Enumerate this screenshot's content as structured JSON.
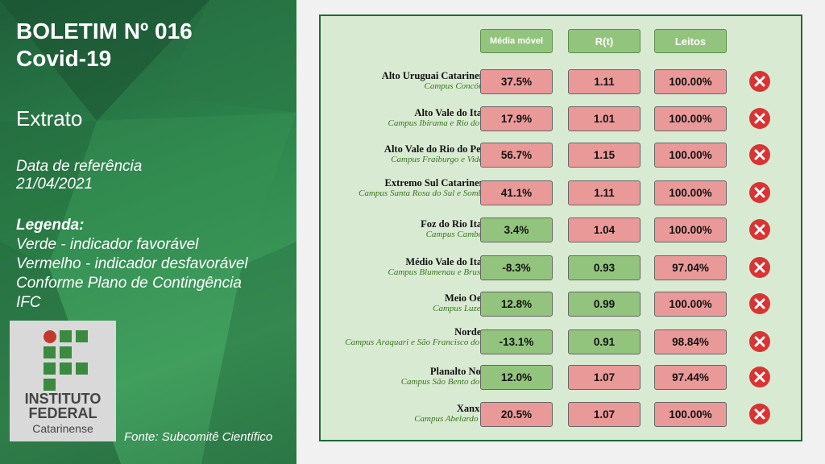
{
  "sidebar": {
    "title_line1": "BOLETIM Nº 016",
    "title_line2": "Covid-19",
    "section": "Extrato",
    "ref_label": "Data de referência",
    "ref_date": "21/04/2021",
    "legend_title": "Legenda:",
    "legend_lines": [
      "Verde - indicador favorável",
      "Vermelho - indicador desfavorável",
      "Conforme Plano de Contingência",
      "IFC"
    ],
    "logo_lines": [
      "INSTITUTO",
      "FEDERAL",
      "Catarinense"
    ],
    "source": "Fonte: Subcomitê Científico"
  },
  "table": {
    "headers": [
      "Média móvel",
      "R(t)",
      "Leitos"
    ],
    "rows": [
      {
        "region": "Alto Uruguai Catarinense",
        "campus": "Campus Concórdia",
        "media": "37.5%",
        "media_status": "red",
        "rt": "1.11",
        "rt_status": "red",
        "leitos": "100.00%",
        "leitos_status": "red",
        "icon": "x-circle-icon"
      },
      {
        "region": "Alto Vale do Itajaí",
        "campus": "Campus Ibirama e Rio do Sul",
        "media": "17.9%",
        "media_status": "red",
        "rt": "1.01",
        "rt_status": "red",
        "leitos": "100.00%",
        "leitos_status": "red",
        "icon": "x-circle-icon"
      },
      {
        "region": "Alto Vale do Rio do Peixe",
        "campus": "Campus Fraiburgo e Videira",
        "media": "56.7%",
        "media_status": "red",
        "rt": "1.15",
        "rt_status": "red",
        "leitos": "100.00%",
        "leitos_status": "red",
        "icon": "x-circle-icon"
      },
      {
        "region": "Extremo Sul Catarinense",
        "campus": "Campus Santa Rosa do Sul e Sombrio",
        "media": "41.1%",
        "media_status": "red",
        "rt": "1.11",
        "rt_status": "red",
        "leitos": "100.00%",
        "leitos_status": "red",
        "icon": "x-circle-icon"
      },
      {
        "region": "Foz do Rio Itajaí",
        "campus": "Campus Camboriú",
        "media": "3.4%",
        "media_status": "green",
        "rt": "1.04",
        "rt_status": "red",
        "leitos": "100.00%",
        "leitos_status": "red",
        "icon": "x-circle-icon"
      },
      {
        "region": "Médio Vale do Itajaí",
        "campus": "Campus Blumenau e Brusque",
        "media": "-8.3%",
        "media_status": "green",
        "rt": "0.93",
        "rt_status": "green",
        "leitos": "97.04%",
        "leitos_status": "red",
        "icon": "x-circle-icon"
      },
      {
        "region": "Meio Oeste",
        "campus": "Campus Luzerna",
        "media": "12.8%",
        "media_status": "green",
        "rt": "0.99",
        "rt_status": "green",
        "leitos": "100.00%",
        "leitos_status": "red",
        "icon": "x-circle-icon"
      },
      {
        "region": "Nordeste",
        "campus": "Campus Araquari e São Francisco do Sul",
        "media": "-13.1%",
        "media_status": "green",
        "rt": "0.91",
        "rt_status": "green",
        "leitos": "98.84%",
        "leitos_status": "red",
        "icon": "x-circle-icon"
      },
      {
        "region": "Planalto Norte",
        "campus": "Campus São Bento do Sul",
        "media": "12.0%",
        "media_status": "green",
        "rt": "1.07",
        "rt_status": "red",
        "leitos": "97.44%",
        "leitos_status": "red",
        "icon": "x-circle-icon"
      },
      {
        "region": "Xanxerê",
        "campus": "Campus Abelardo Luz",
        "media": "20.5%",
        "media_status": "red",
        "rt": "1.07",
        "rt_status": "red",
        "leitos": "100.00%",
        "leitos_status": "red",
        "icon": "x-circle-icon"
      }
    ]
  },
  "colors": {
    "favorable": "#93c47d",
    "unfavorable": "#ea9999",
    "panel_bg": "#d9ead3",
    "panel_border": "#1e6b34",
    "x_icon": "#d93434"
  }
}
